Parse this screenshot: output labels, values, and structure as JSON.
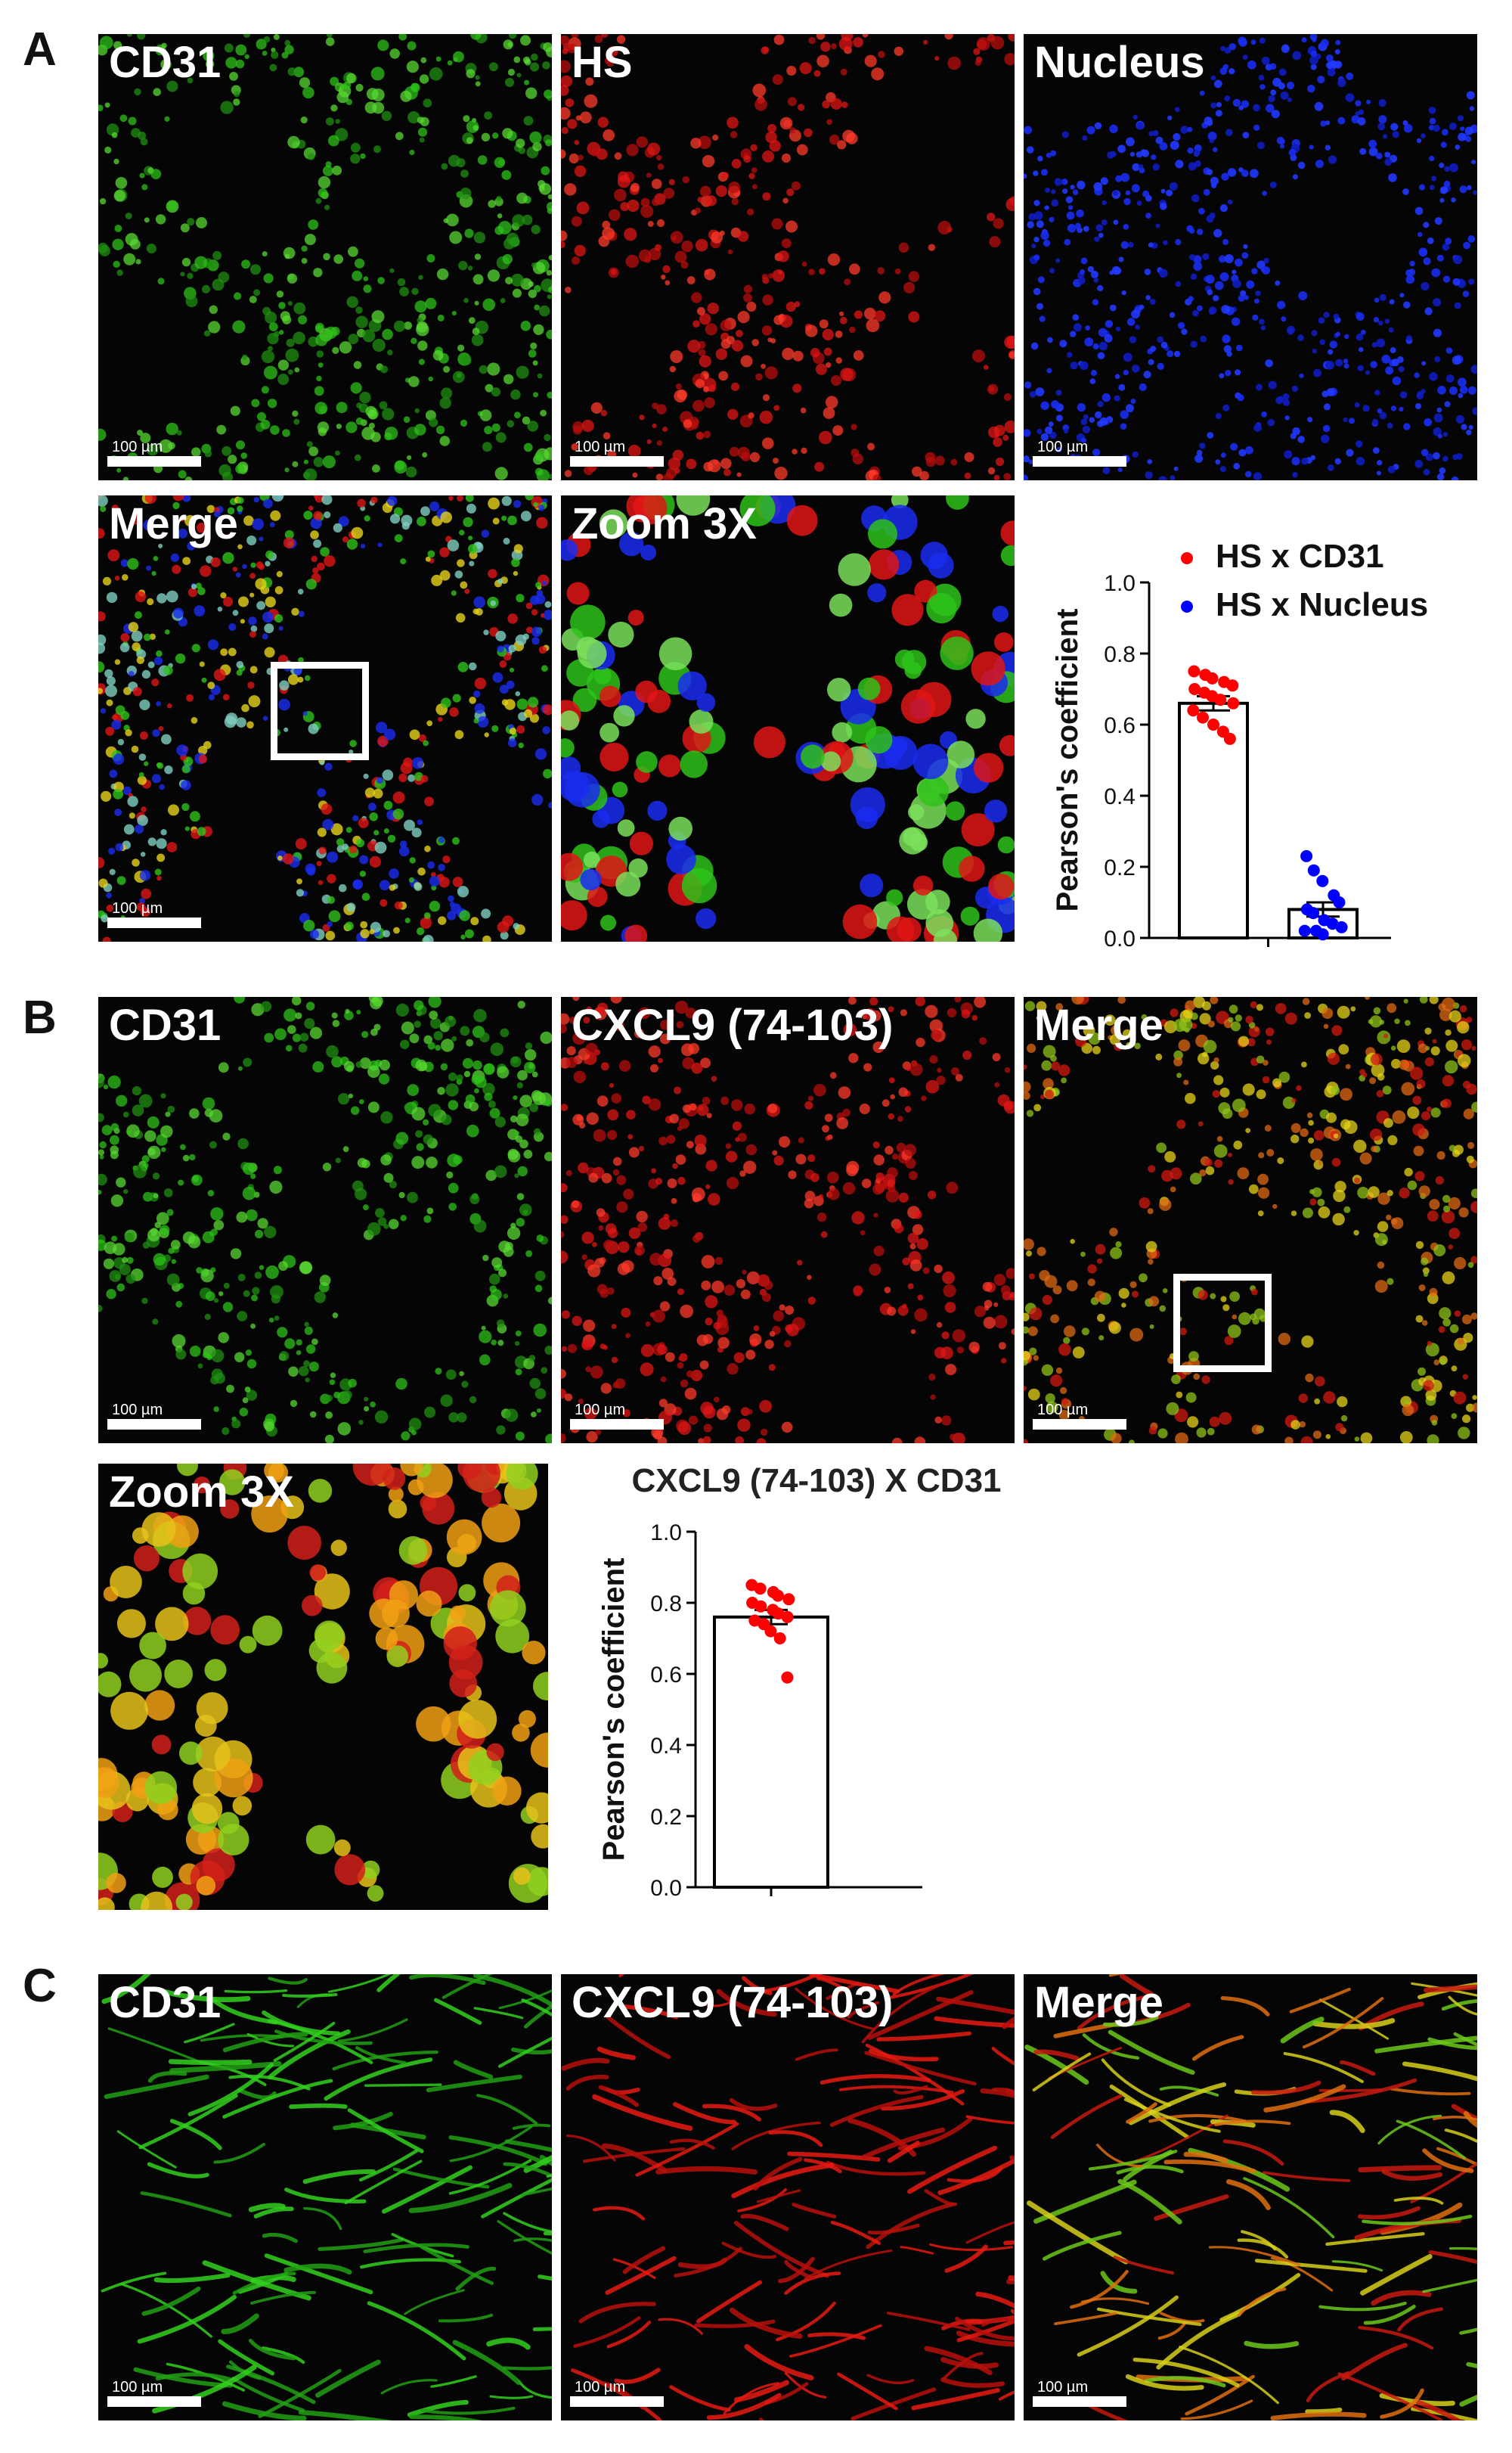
{
  "panels": {
    "A": {
      "letter": "A",
      "cd31": "CD31",
      "hs": "HS",
      "nucleus": "Nucleus",
      "merge": "Merge",
      "zoom": "Zoom 3X"
    },
    "B": {
      "letter": "B",
      "cd31": "CD31",
      "cxcl9": "CXCL9 (74-103)",
      "merge": "Merge",
      "zoom": "Zoom 3X"
    },
    "C": {
      "letter": "C",
      "cd31": "CD31",
      "cxcl9": "CXCL9 (74-103)",
      "merge": "Merge"
    }
  },
  "scale_label": "100 µm",
  "colors": {
    "cd31": "#2ec21a",
    "red": "#e01515",
    "nucleus": "#1a2cf0",
    "yellow": "#e6d21a"
  },
  "chart_data": [
    {
      "type": "bar",
      "title": "",
      "ylabel": "Pearson's coefficient",
      "ylim": [
        0,
        1.0
      ],
      "yticks": [
        "0.0",
        "0.2",
        "0.4",
        "0.6",
        "0.8",
        "1.0"
      ],
      "legend_position": "top-right",
      "series": [
        {
          "name": "HS x CD31",
          "color": "#ff0000",
          "mean": 0.66,
          "sem": 0.02,
          "points": [
            0.75,
            0.74,
            0.73,
            0.72,
            0.71,
            0.7,
            0.69,
            0.68,
            0.67,
            0.66,
            0.64,
            0.62,
            0.6,
            0.58,
            0.56
          ]
        },
        {
          "name": "HS x Nucleus",
          "color": "#0000ff",
          "mean": 0.08,
          "sem": 0.02,
          "points": [
            0.23,
            0.19,
            0.16,
            0.12,
            0.1,
            0.08,
            0.07,
            0.05,
            0.04,
            0.03,
            0.02,
            0.02,
            0.01
          ]
        }
      ]
    },
    {
      "type": "bar",
      "title": "CXCL9 (74-103) X CD31",
      "ylabel": "Pearson's coefficient",
      "ylim": [
        0,
        1.0
      ],
      "yticks": [
        "0.0",
        "0.2",
        "0.4",
        "0.6",
        "0.8",
        "1.0"
      ],
      "series": [
        {
          "color": "#ff0000",
          "mean": 0.76,
          "sem": 0.02,
          "points": [
            0.85,
            0.84,
            0.83,
            0.82,
            0.81,
            0.8,
            0.79,
            0.78,
            0.77,
            0.76,
            0.75,
            0.74,
            0.72,
            0.7,
            0.59
          ]
        }
      ]
    }
  ]
}
